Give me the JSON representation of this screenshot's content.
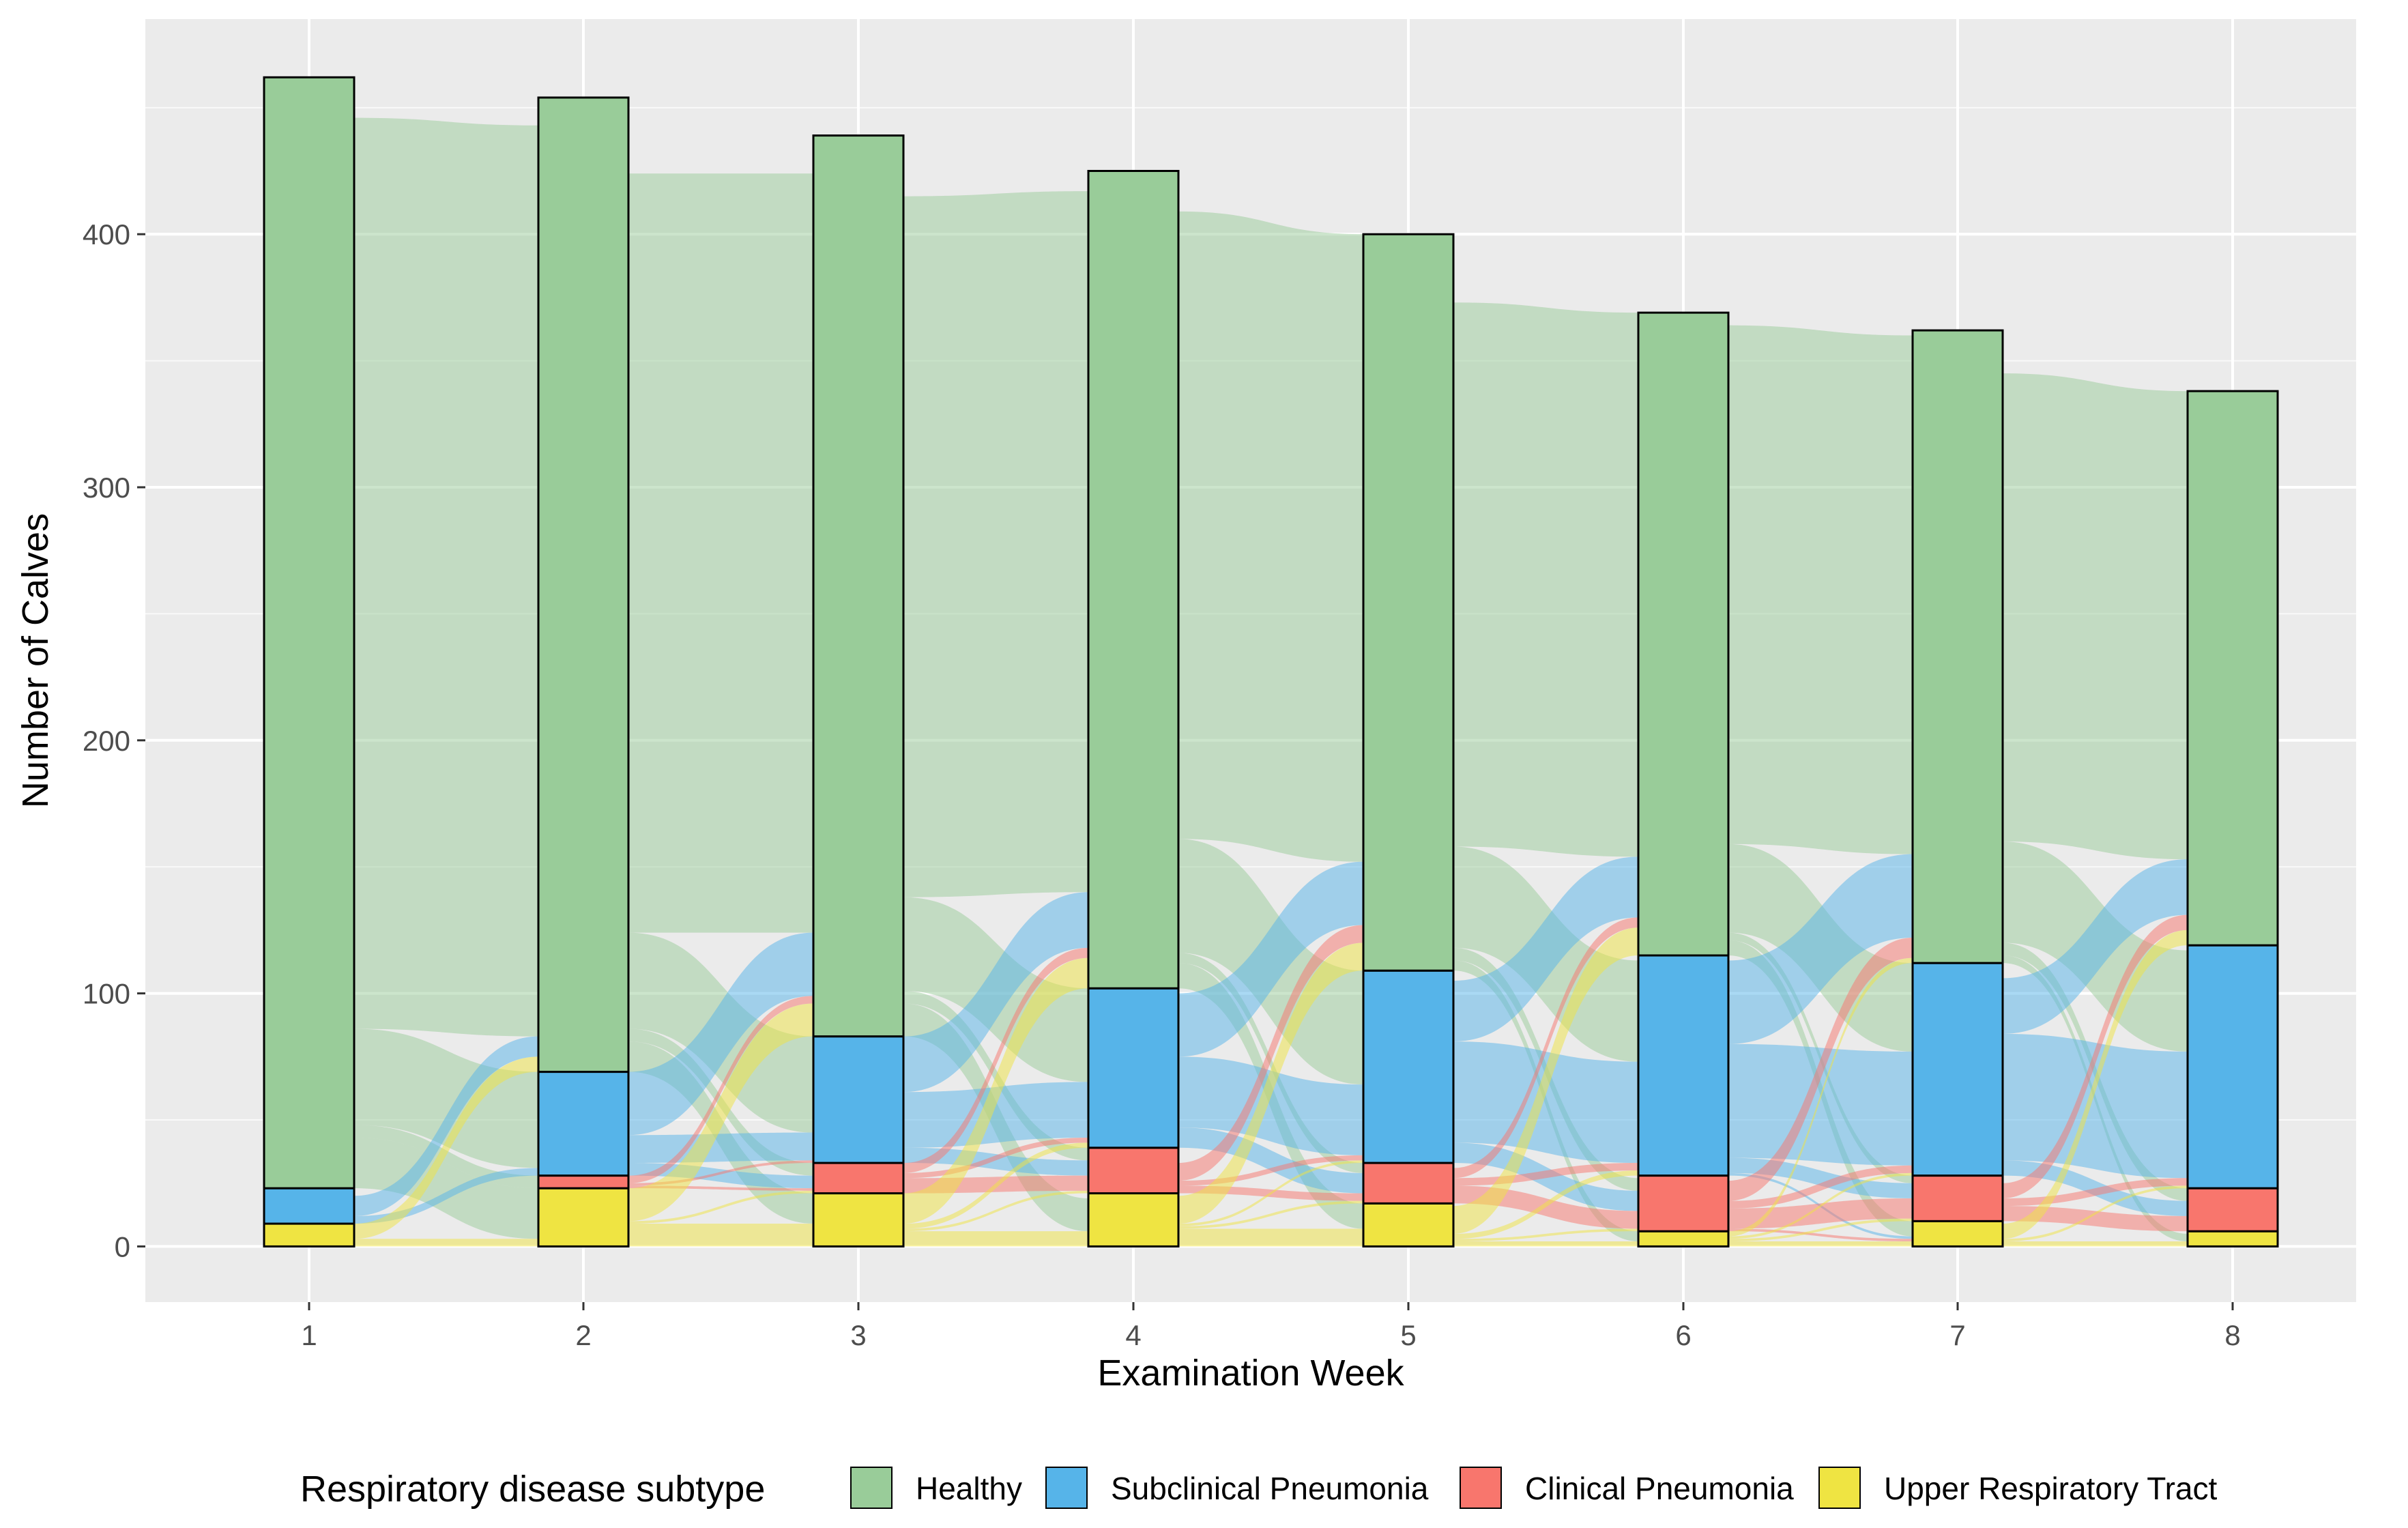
{
  "chart_data": {
    "type": "alluvial",
    "title": "",
    "xlabel": "Examination Week",
    "ylabel": "Number of Calves",
    "x": [
      "1",
      "2",
      "3",
      "4",
      "5",
      "6",
      "7",
      "8"
    ],
    "ylim": [
      -22,
      485
    ],
    "yticks": [
      0,
      100,
      200,
      300,
      400
    ],
    "legend": {
      "title": "Respiratory disease subtype",
      "position": "bottom"
    },
    "series": [
      {
        "name": "Upper Respiratory Tract",
        "color": "#EFE442",
        "values": [
          9,
          23,
          21,
          21,
          17,
          6,
          10,
          6
        ]
      },
      {
        "name": "Clinical Pneumonia",
        "color": "#F8766D",
        "values": [
          0,
          5,
          12,
          18,
          16,
          22,
          18,
          17
        ]
      },
      {
        "name": "Subclinical Pneumonia",
        "color": "#56B4E9",
        "values": [
          14,
          41,
          50,
          63,
          76,
          87,
          84,
          96
        ]
      },
      {
        "name": "Healthy",
        "color": "#99CC99",
        "values": [
          439,
          385,
          356,
          323,
          291,
          254,
          250,
          219
        ]
      }
    ],
    "flows": [
      {
        "from_week": "1",
        "to_week": "2",
        "from_state": "Healthy",
        "to_state": "Healthy",
        "count": 360
      },
      {
        "from_week": "1",
        "to_week": "2",
        "from_state": "Healthy",
        "to_state": "Subclinical Pneumonia",
        "count": 38
      },
      {
        "from_week": "1",
        "to_week": "2",
        "from_state": "Healthy",
        "to_state": "Upper Respiratory Tract",
        "count": 20
      },
      {
        "from_week": "1",
        "to_week": "2",
        "from_state": "Healthy",
        "to_state": "Clinical Pneumonia",
        "count": 5
      },
      {
        "from_week": "1",
        "to_week": "2",
        "from_state": "Subclinical Pneumonia",
        "to_state": "Healthy",
        "count": 8
      },
      {
        "from_week": "1",
        "to_week": "2",
        "from_state": "Subclinical Pneumonia",
        "to_state": "Subclinical Pneumonia",
        "count": 3
      },
      {
        "from_week": "1",
        "to_week": "2",
        "from_state": "Upper Respiratory Tract",
        "to_state": "Healthy",
        "count": 6
      },
      {
        "from_week": "1",
        "to_week": "2",
        "from_state": "Upper Respiratory Tract",
        "to_state": "Upper Respiratory Tract",
        "count": 3
      },
      {
        "from_week": "2",
        "to_week": "3",
        "from_state": "Healthy",
        "to_state": "Healthy",
        "count": 300
      },
      {
        "from_week": "2",
        "to_week": "3",
        "from_state": "Healthy",
        "to_state": "Subclinical Pneumonia",
        "count": 38
      },
      {
        "from_week": "2",
        "to_week": "3",
        "from_state": "Healthy",
        "to_state": "Upper Respiratory Tract",
        "count": 12
      },
      {
        "from_week": "2",
        "to_week": "3",
        "from_state": "Healthy",
        "to_state": "Clinical Pneumonia",
        "count": 5
      },
      {
        "from_week": "2",
        "to_week": "3",
        "from_state": "Subclinical Pneumonia",
        "to_state": "Healthy",
        "count": 25
      },
      {
        "from_week": "2",
        "to_week": "3",
        "from_state": "Subclinical Pneumonia",
        "to_state": "Subclinical Pneumonia",
        "count": 11
      },
      {
        "from_week": "2",
        "to_week": "3",
        "from_state": "Subclinical Pneumonia",
        "to_state": "Clinical Pneumonia",
        "count": 5
      },
      {
        "from_week": "2",
        "to_week": "3",
        "from_state": "Clinical Pneumonia",
        "to_state": "Healthy",
        "count": 3
      },
      {
        "from_week": "2",
        "to_week": "3",
        "from_state": "Clinical Pneumonia",
        "to_state": "Subclinical Pneumonia",
        "count": 1
      },
      {
        "from_week": "2",
        "to_week": "3",
        "from_state": "Clinical Pneumonia",
        "to_state": "Clinical Pneumonia",
        "count": 1
      },
      {
        "from_week": "2",
        "to_week": "3",
        "from_state": "Upper Respiratory Tract",
        "to_state": "Healthy",
        "count": 13
      },
      {
        "from_week": "2",
        "to_week": "3",
        "from_state": "Upper Respiratory Tract",
        "to_state": "Upper Respiratory Tract",
        "count": 9
      },
      {
        "from_week": "2",
        "to_week": "3",
        "from_state": "Upper Respiratory Tract",
        "to_state": "Clinical Pneumonia",
        "count": 1
      },
      {
        "from_week": "3",
        "to_week": "4",
        "from_state": "Healthy",
        "to_state": "Healthy",
        "count": 277
      },
      {
        "from_week": "3",
        "to_week": "4",
        "from_state": "Healthy",
        "to_state": "Subclinical Pneumonia",
        "count": 37
      },
      {
        "from_week": "3",
        "to_week": "4",
        "from_state": "Healthy",
        "to_state": "Upper Respiratory Tract",
        "count": 13
      },
      {
        "from_week": "3",
        "to_week": "4",
        "from_state": "Healthy",
        "to_state": "Clinical Pneumonia",
        "count": 5
      },
      {
        "from_week": "3",
        "to_week": "4",
        "from_state": "Subclinical Pneumonia",
        "to_state": "Healthy",
        "count": 22
      },
      {
        "from_week": "3",
        "to_week": "4",
        "from_state": "Subclinical Pneumonia",
        "to_state": "Subclinical Pneumonia",
        "count": 22
      },
      {
        "from_week": "3",
        "to_week": "4",
        "from_state": "Subclinical Pneumonia",
        "to_state": "Clinical Pneumonia",
        "count": 6
      },
      {
        "from_week": "3",
        "to_week": "4",
        "from_state": "Clinical Pneumonia",
        "to_state": "Healthy",
        "count": 4
      },
      {
        "from_week": "3",
        "to_week": "4",
        "from_state": "Clinical Pneumonia",
        "to_state": "Subclinical Pneumonia",
        "count": 2
      },
      {
        "from_week": "3",
        "to_week": "4",
        "from_state": "Clinical Pneumonia",
        "to_state": "Clinical Pneumonia",
        "count": 6
      },
      {
        "from_week": "3",
        "to_week": "4",
        "from_state": "Upper Respiratory Tract",
        "to_state": "Healthy",
        "count": 12
      },
      {
        "from_week": "3",
        "to_week": "4",
        "from_state": "Upper Respiratory Tract",
        "to_state": "Subclinical Pneumonia",
        "count": 2
      },
      {
        "from_week": "3",
        "to_week": "4",
        "from_state": "Upper Respiratory Tract",
        "to_state": "Upper Respiratory Tract",
        "count": 6
      },
      {
        "from_week": "3",
        "to_week": "4",
        "from_state": "Upper Respiratory Tract",
        "to_state": "Clinical Pneumonia",
        "count": 1
      },
      {
        "from_week": "4",
        "to_week": "5",
        "from_state": "Healthy",
        "to_state": "Healthy",
        "count": 248
      },
      {
        "from_week": "4",
        "to_week": "5",
        "from_state": "Healthy",
        "to_state": "Subclinical Pneumonia",
        "count": 45
      },
      {
        "from_week": "4",
        "to_week": "5",
        "from_state": "Healthy",
        "to_state": "Upper Respiratory Tract",
        "count": 10
      },
      {
        "from_week": "4",
        "to_week": "5",
        "from_state": "Healthy",
        "to_state": "Clinical Pneumonia",
        "count": 4
      },
      {
        "from_week": "4",
        "to_week": "5",
        "from_state": "Subclinical Pneumonia",
        "to_state": "Healthy",
        "count": 25
      },
      {
        "from_week": "4",
        "to_week": "5",
        "from_state": "Subclinical Pneumonia",
        "to_state": "Subclinical Pneumonia",
        "count": 28
      },
      {
        "from_week": "4",
        "to_week": "5",
        "from_state": "Subclinical Pneumonia",
        "to_state": "Clinical Pneumonia",
        "count": 8
      },
      {
        "from_week": "4",
        "to_week": "5",
        "from_state": "Clinical Pneumonia",
        "to_state": "Healthy",
        "count": 7
      },
      {
        "from_week": "4",
        "to_week": "5",
        "from_state": "Clinical Pneumonia",
        "to_state": "Subclinical Pneumonia",
        "count": 2
      },
      {
        "from_week": "4",
        "to_week": "5",
        "from_state": "Clinical Pneumonia",
        "to_state": "Clinical Pneumonia",
        "count": 3
      },
      {
        "from_week": "4",
        "to_week": "5",
        "from_state": "Upper Respiratory Tract",
        "to_state": "Healthy",
        "count": 11
      },
      {
        "from_week": "4",
        "to_week": "5",
        "from_state": "Upper Respiratory Tract",
        "to_state": "Subclinical Pneumonia",
        "count": 1
      },
      {
        "from_week": "4",
        "to_week": "5",
        "from_state": "Upper Respiratory Tract",
        "to_state": "Upper Respiratory Tract",
        "count": 7
      },
      {
        "from_week": "4",
        "to_week": "5",
        "from_state": "Upper Respiratory Tract",
        "to_state": "Clinical Pneumonia",
        "count": 1
      },
      {
        "from_week": "5",
        "to_week": "6",
        "from_state": "Healthy",
        "to_state": "Healthy",
        "count": 215
      },
      {
        "from_week": "5",
        "to_week": "6",
        "from_state": "Healthy",
        "to_state": "Subclinical Pneumonia",
        "count": 40
      },
      {
        "from_week": "5",
        "to_week": "6",
        "from_state": "Healthy",
        "to_state": "Upper Respiratory Tract",
        "count": 4
      },
      {
        "from_week": "5",
        "to_week": "6",
        "from_state": "Healthy",
        "to_state": "Clinical Pneumonia",
        "count": 5
      },
      {
        "from_week": "5",
        "to_week": "6",
        "from_state": "Subclinical Pneumonia",
        "to_state": "Healthy",
        "count": 24
      },
      {
        "from_week": "5",
        "to_week": "6",
        "from_state": "Subclinical Pneumonia",
        "to_state": "Subclinical Pneumonia",
        "count": 40
      },
      {
        "from_week": "5",
        "to_week": "6",
        "from_state": "Subclinical Pneumonia",
        "to_state": "Clinical Pneumonia",
        "count": 8
      },
      {
        "from_week": "5",
        "to_week": "6",
        "from_state": "Clinical Pneumonia",
        "to_state": "Healthy",
        "count": 4
      },
      {
        "from_week": "5",
        "to_week": "6",
        "from_state": "Clinical Pneumonia",
        "to_state": "Subclinical Pneumonia",
        "count": 3
      },
      {
        "from_week": "5",
        "to_week": "6",
        "from_state": "Clinical Pneumonia",
        "to_state": "Clinical Pneumonia",
        "count": 7
      },
      {
        "from_week": "5",
        "to_week": "6",
        "from_state": "Upper Respiratory Tract",
        "to_state": "Healthy",
        "count": 11
      },
      {
        "from_week": "5",
        "to_week": "6",
        "from_state": "Upper Respiratory Tract",
        "to_state": "Subclinical Pneumonia",
        "count": 2
      },
      {
        "from_week": "5",
        "to_week": "6",
        "from_state": "Upper Respiratory Tract",
        "to_state": "Upper Respiratory Tract",
        "count": 2
      },
      {
        "from_week": "5",
        "to_week": "6",
        "from_state": "Upper Respiratory Tract",
        "to_state": "Clinical Pneumonia",
        "count": 1
      },
      {
        "from_week": "6",
        "to_week": "7",
        "from_state": "Healthy",
        "to_state": "Healthy",
        "count": 205
      },
      {
        "from_week": "6",
        "to_week": "7",
        "from_state": "Healthy",
        "to_state": "Subclinical Pneumonia",
        "count": 35
      },
      {
        "from_week": "6",
        "to_week": "7",
        "from_state": "Healthy",
        "to_state": "Upper Respiratory Tract",
        "count": 6
      },
      {
        "from_week": "6",
        "to_week": "7",
        "from_state": "Healthy",
        "to_state": "Clinical Pneumonia",
        "count": 3
      },
      {
        "from_week": "6",
        "to_week": "7",
        "from_state": "Subclinical Pneumonia",
        "to_state": "Healthy",
        "count": 33
      },
      {
        "from_week": "6",
        "to_week": "7",
        "from_state": "Subclinical Pneumonia",
        "to_state": "Subclinical Pneumonia",
        "count": 45
      },
      {
        "from_week": "6",
        "to_week": "7",
        "from_state": "Subclinical Pneumonia",
        "to_state": "Upper Respiratory Tract",
        "count": 1
      },
      {
        "from_week": "6",
        "to_week": "7",
        "from_state": "Subclinical Pneumonia",
        "to_state": "Clinical Pneumonia",
        "count": 6
      },
      {
        "from_week": "6",
        "to_week": "7",
        "from_state": "Clinical Pneumonia",
        "to_state": "Healthy",
        "count": 8
      },
      {
        "from_week": "6",
        "to_week": "7",
        "from_state": "Clinical Pneumonia",
        "to_state": "Subclinical Pneumonia",
        "count": 3
      },
      {
        "from_week": "6",
        "to_week": "7",
        "from_state": "Clinical Pneumonia",
        "to_state": "Upper Respiratory Tract",
        "count": 1
      },
      {
        "from_week": "6",
        "to_week": "7",
        "from_state": "Clinical Pneumonia",
        "to_state": "Clinical Pneumonia",
        "count": 8
      },
      {
        "from_week": "6",
        "to_week": "7",
        "from_state": "Upper Respiratory Tract",
        "to_state": "Healthy",
        "count": 2
      },
      {
        "from_week": "6",
        "to_week": "7",
        "from_state": "Upper Respiratory Tract",
        "to_state": "Subclinical Pneumonia",
        "count": 1
      },
      {
        "from_week": "6",
        "to_week": "7",
        "from_state": "Upper Respiratory Tract",
        "to_state": "Upper Respiratory Tract",
        "count": 2
      },
      {
        "from_week": "6",
        "to_week": "7",
        "from_state": "Upper Respiratory Tract",
        "to_state": "Clinical Pneumonia",
        "count": 1
      },
      {
        "from_week": "7",
        "to_week": "8",
        "from_state": "Healthy",
        "to_state": "Healthy",
        "count": 185
      },
      {
        "from_week": "7",
        "to_week": "8",
        "from_state": "Healthy",
        "to_state": "Subclinical Pneumonia",
        "count": 40
      },
      {
        "from_week": "7",
        "to_week": "8",
        "from_state": "Healthy",
        "to_state": "Upper Respiratory Tract",
        "count": 3
      },
      {
        "from_week": "7",
        "to_week": "8",
        "from_state": "Healthy",
        "to_state": "Clinical Pneumonia",
        "count": 5
      },
      {
        "from_week": "7",
        "to_week": "8",
        "from_state": "Subclinical Pneumonia",
        "to_state": "Healthy",
        "count": 22
      },
      {
        "from_week": "7",
        "to_week": "8",
        "from_state": "Subclinical Pneumonia",
        "to_state": "Subclinical Pneumonia",
        "count": 50
      },
      {
        "from_week": "7",
        "to_week": "8",
        "from_state": "Subclinical Pneumonia",
        "to_state": "Clinical Pneumonia",
        "count": 6
      },
      {
        "from_week": "7",
        "to_week": "8",
        "from_state": "Clinical Pneumonia",
        "to_state": "Healthy",
        "count": 6
      },
      {
        "from_week": "7",
        "to_week": "8",
        "from_state": "Clinical Pneumonia",
        "to_state": "Subclinical Pneumonia",
        "count": 3
      },
      {
        "from_week": "7",
        "to_week": "8",
        "from_state": "Clinical Pneumonia",
        "to_state": "Clinical Pneumonia",
        "count": 6
      },
      {
        "from_week": "7",
        "to_week": "8",
        "from_state": "Upper Respiratory Tract",
        "to_state": "Healthy",
        "count": 6
      },
      {
        "from_week": "7",
        "to_week": "8",
        "from_state": "Upper Respiratory Tract",
        "to_state": "Subclinical Pneumonia",
        "count": 1
      },
      {
        "from_week": "7",
        "to_week": "8",
        "from_state": "Upper Respiratory Tract",
        "to_state": "Upper Respiratory Tract",
        "count": 2
      }
    ]
  },
  "colors": {
    "panel_background": "#EBEBEB",
    "grid_major": "#FFFFFF",
    "bar_outline": "#000000"
  }
}
